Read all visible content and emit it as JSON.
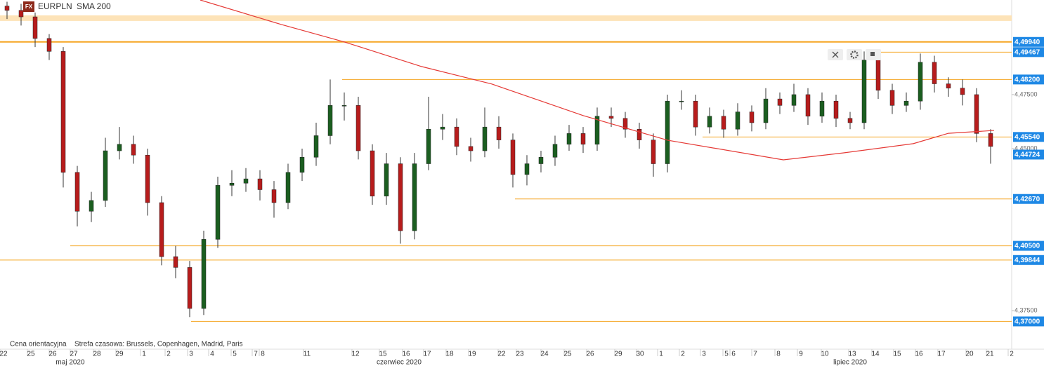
{
  "chart_data": {
    "type": "candlestick",
    "badge": "FX",
    "title": "EURPLN",
    "note": "Cena orientacyjna",
    "timezone": "Strefa czasowa: Brussels, Copenhagen, Madrid, Paris",
    "xlim": [
      0,
      144
    ],
    "ylim": [
      4.363,
      4.5188
    ],
    "yticks": [
      {
        "value": 4.475,
        "label": "4,47500"
      },
      {
        "value": 4.45,
        "label": "4,45000"
      },
      {
        "value": 4.375,
        "label": "4,37500"
      }
    ],
    "xticks": [
      {
        "value": 0.5,
        "label": "22"
      },
      {
        "value": 4.4,
        "label": "25"
      },
      {
        "value": 7.5,
        "label": "26"
      },
      {
        "value": 10.5,
        "label": "27"
      },
      {
        "value": 13.8,
        "label": "28"
      },
      {
        "value": 17,
        "label": "29"
      },
      {
        "value": 20.5,
        "label": "1"
      },
      {
        "value": 24,
        "label": "2"
      },
      {
        "value": 27.2,
        "label": "3"
      },
      {
        "value": 30.2,
        "label": "4"
      },
      {
        "value": 33.4,
        "label": "5"
      },
      {
        "value": 36.4,
        "label": "7"
      },
      {
        "value": 37.4,
        "label": "8"
      },
      {
        "value": 43.7,
        "label": "11"
      },
      {
        "value": 50.6,
        "label": "12"
      },
      {
        "value": 54.5,
        "label": "15"
      },
      {
        "value": 57.8,
        "label": "16"
      },
      {
        "value": 60.8,
        "label": "17"
      },
      {
        "value": 64,
        "label": "18"
      },
      {
        "value": 67.2,
        "label": "19"
      },
      {
        "value": 71.4,
        "label": "22"
      },
      {
        "value": 74,
        "label": "23"
      },
      {
        "value": 77.5,
        "label": "24"
      },
      {
        "value": 80.8,
        "label": "25"
      },
      {
        "value": 84,
        "label": "26"
      },
      {
        "value": 88,
        "label": "29"
      },
      {
        "value": 91.1,
        "label": "30"
      },
      {
        "value": 94.1,
        "label": "1"
      },
      {
        "value": 97.2,
        "label": "2"
      },
      {
        "value": 100.2,
        "label": "3"
      },
      {
        "value": 103.4,
        "label": "5"
      },
      {
        "value": 104.4,
        "label": "6"
      },
      {
        "value": 107.5,
        "label": "7"
      },
      {
        "value": 110.8,
        "label": "8"
      },
      {
        "value": 114,
        "label": "9"
      },
      {
        "value": 117.4,
        "label": "10"
      },
      {
        "value": 121.3,
        "label": "13"
      },
      {
        "value": 124.6,
        "label": "14"
      },
      {
        "value": 127.7,
        "label": "15"
      },
      {
        "value": 130.8,
        "label": "16"
      },
      {
        "value": 134,
        "label": "17"
      },
      {
        "value": 138,
        "label": "20"
      },
      {
        "value": 140.9,
        "label": "21"
      },
      {
        "value": 144,
        "label": "2"
      }
    ],
    "months": [
      {
        "value": 10,
        "label": "maj 2020"
      },
      {
        "value": 56.8,
        "label": "czerwiec 2020"
      },
      {
        "value": 121,
        "label": "lipiec 2020"
      }
    ],
    "up_color": "#1b5e20",
    "down_color": "#b71c1c",
    "x": [
      1,
      3,
      5,
      7,
      9,
      11,
      13,
      15,
      17,
      19,
      21,
      23,
      25,
      27,
      29,
      31,
      33,
      35,
      37,
      39,
      41,
      43,
      45,
      47,
      49,
      51,
      53,
      55,
      57,
      59,
      61,
      63,
      65,
      67,
      69,
      71,
      73,
      75,
      77,
      79,
      81,
      83,
      85,
      87,
      89,
      91,
      93,
      95,
      97,
      99,
      101,
      103,
      105,
      107,
      109,
      111,
      113,
      115,
      117,
      119,
      121,
      123,
      125,
      127,
      129,
      131,
      133,
      135,
      137,
      139,
      141
    ],
    "ohlc": [
      [
        4.516,
        4.518,
        4.51,
        4.514
      ],
      [
        4.514,
        4.517,
        4.507,
        4.511
      ],
      [
        4.511,
        4.513,
        4.497,
        4.501
      ],
      [
        4.501,
        4.503,
        4.491,
        4.495
      ],
      [
        4.495,
        4.497,
        4.432,
        4.439
      ],
      [
        4.439,
        4.442,
        4.414,
        4.421
      ],
      [
        4.421,
        4.43,
        4.416,
        4.426
      ],
      [
        4.426,
        4.455,
        4.423,
        4.449
      ],
      [
        4.449,
        4.46,
        4.445,
        4.452
      ],
      [
        4.452,
        4.456,
        4.443,
        4.447
      ],
      [
        4.447,
        4.45,
        4.419,
        4.425
      ],
      [
        4.425,
        4.428,
        4.396,
        4.4
      ],
      [
        4.4,
        4.405,
        4.39,
        4.395
      ],
      [
        4.395,
        4.398,
        4.372,
        4.376
      ],
      [
        4.376,
        4.412,
        4.373,
        4.408
      ],
      [
        4.408,
        4.437,
        4.404,
        4.433
      ],
      [
        4.433,
        4.44,
        4.428,
        4.434
      ],
      [
        4.434,
        4.441,
        4.43,
        4.436
      ],
      [
        4.436,
        4.44,
        4.426,
        4.431
      ],
      [
        4.431,
        4.435,
        4.418,
        4.425
      ],
      [
        4.425,
        4.443,
        4.422,
        4.439
      ],
      [
        4.439,
        4.45,
        4.435,
        4.446
      ],
      [
        4.446,
        4.462,
        4.442,
        4.456
      ],
      [
        4.456,
        4.482,
        4.452,
        4.47
      ],
      [
        4.47,
        4.476,
        4.463,
        4.47
      ],
      [
        4.47,
        4.474,
        4.445,
        4.449
      ],
      [
        4.449,
        4.452,
        4.424,
        4.428
      ],
      [
        4.428,
        4.448,
        4.424,
        4.443
      ],
      [
        4.443,
        4.446,
        4.406,
        4.412
      ],
      [
        4.412,
        4.448,
        4.408,
        4.443
      ],
      [
        4.443,
        4.474,
        4.44,
        4.459
      ],
      [
        4.459,
        4.466,
        4.454,
        4.46
      ],
      [
        4.46,
        4.464,
        4.447,
        4.451
      ],
      [
        4.451,
        4.455,
        4.444,
        4.449
      ],
      [
        4.449,
        4.469,
        4.446,
        4.46
      ],
      [
        4.46,
        4.465,
        4.45,
        4.454
      ],
      [
        4.454,
        4.457,
        4.432,
        4.438
      ],
      [
        4.438,
        4.447,
        4.433,
        4.443
      ],
      [
        4.443,
        4.449,
        4.439,
        4.446
      ],
      [
        4.446,
        4.456,
        4.442,
        4.452
      ],
      [
        4.452,
        4.461,
        4.449,
        4.457
      ],
      [
        4.457,
        4.46,
        4.448,
        4.452
      ],
      [
        4.452,
        4.469,
        4.449,
        4.465
      ],
      [
        4.465,
        4.469,
        4.46,
        4.464
      ],
      [
        4.464,
        4.467,
        4.455,
        4.459
      ],
      [
        4.459,
        4.462,
        4.45,
        4.454
      ],
      [
        4.454,
        4.457,
        4.437,
        4.443
      ],
      [
        4.443,
        4.475,
        4.439,
        4.472
      ],
      [
        4.472,
        4.477,
        4.468,
        4.472
      ],
      [
        4.472,
        4.475,
        4.456,
        4.46
      ],
      [
        4.46,
        4.469,
        4.457,
        4.465
      ],
      [
        4.465,
        4.468,
        4.455,
        4.459
      ],
      [
        4.459,
        4.471,
        4.456,
        4.467
      ],
      [
        4.467,
        4.47,
        4.458,
        4.462
      ],
      [
        4.462,
        4.478,
        4.459,
        4.473
      ],
      [
        4.473,
        4.476,
        4.466,
        4.47
      ],
      [
        4.47,
        4.48,
        4.467,
        4.475
      ],
      [
        4.475,
        4.478,
        4.461,
        4.465
      ],
      [
        4.465,
        4.476,
        4.462,
        4.472
      ],
      [
        4.472,
        4.475,
        4.46,
        4.464
      ],
      [
        4.464,
        4.467,
        4.459,
        4.462
      ],
      [
        4.462,
        4.495,
        4.459,
        4.491
      ],
      [
        4.491,
        4.494,
        4.473,
        4.477
      ],
      [
        4.477,
        4.48,
        4.466,
        4.47
      ],
      [
        4.47,
        4.476,
        4.467,
        4.472
      ],
      [
        4.472,
        4.494,
        4.468,
        4.49
      ],
      [
        4.49,
        4.493,
        4.476,
        4.48
      ],
      [
        4.48,
        4.483,
        4.474,
        4.478
      ],
      [
        4.478,
        4.482,
        4.47,
        4.475
      ],
      [
        4.475,
        4.478,
        4.453,
        4.457
      ],
      [
        4.457,
        4.459,
        4.443,
        4.451
      ]
    ],
    "sma": {
      "name": "SMA 200",
      "color": "#e53935",
      "x": [
        28.5,
        40,
        49,
        60,
        70,
        83,
        95,
        111.5,
        120,
        130,
        135,
        141.5
      ],
      "values": [
        4.5188,
        4.5075,
        4.4994,
        4.488,
        4.4799,
        4.4653,
        4.4539,
        4.4448,
        4.448,
        4.4523,
        4.4571,
        4.4584
      ]
    },
    "zone": {
      "values": [
        4.5091,
        4.5117
      ],
      "color": "#fde3b8"
    },
    "level_color": "#f5a623",
    "label_color": "#1e88e5",
    "levels": [
      {
        "value": 4.4994,
        "label": "4,49940",
        "start": 0
      },
      {
        "value": 4.49467,
        "label": "4,49467",
        "start": 124.5
      },
      {
        "value": 4.482,
        "label": "4,48200",
        "start": 48.7
      },
      {
        "value": 4.4554,
        "label": "4,45540",
        "start": 100
      },
      {
        "value": 4.4267,
        "label": "4,42670",
        "start": 73.3
      },
      {
        "value": 4.405,
        "label": "4,40500",
        "start": 10
      },
      {
        "value": 4.39844,
        "label": "4,39844",
        "start": 0
      },
      {
        "value": 4.37,
        "label": "4,37000",
        "start": 27.2
      }
    ],
    "last": {
      "value": 4.44724,
      "label": "4,44724"
    }
  }
}
